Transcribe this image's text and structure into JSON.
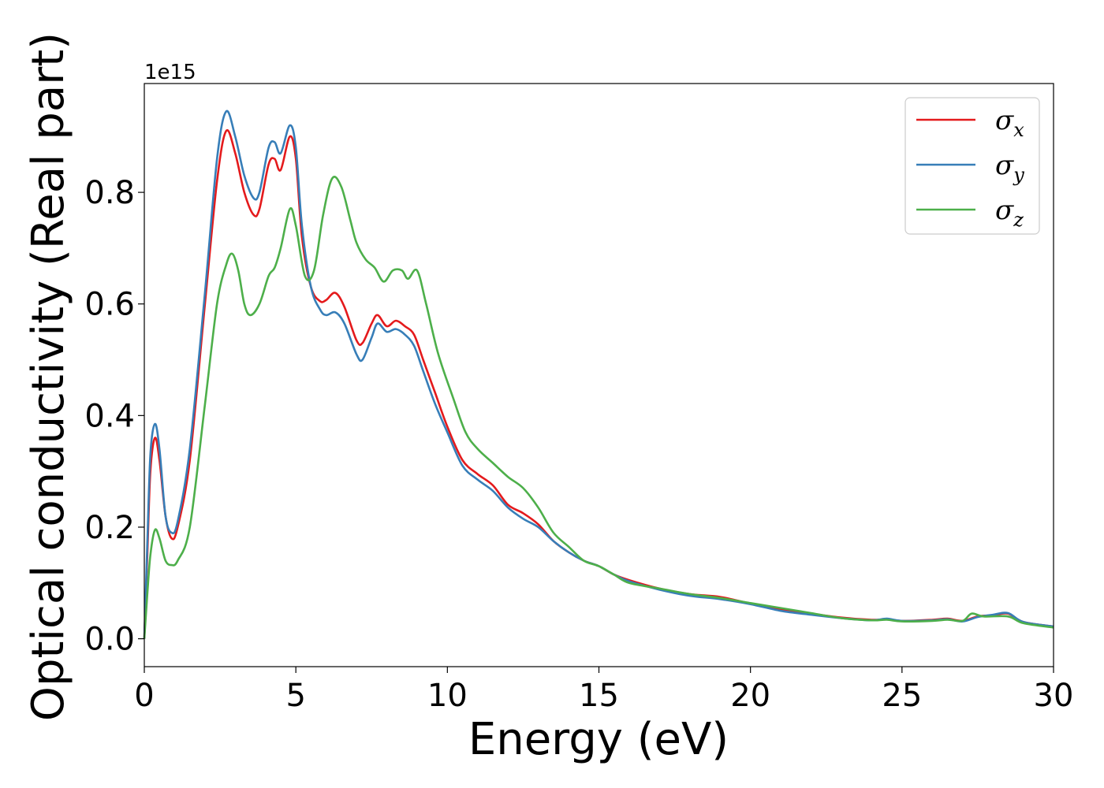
{
  "chart_data": {
    "type": "line",
    "title": "",
    "xlabel": "Energy (eV)",
    "ylabel": "Optical conductivity (Real part)",
    "y_offset_label": "1e15",
    "xlim": [
      0,
      30
    ],
    "ylim": [
      -0.05,
      0.995
    ],
    "xticks": [
      0,
      5,
      10,
      15,
      20,
      25,
      30
    ],
    "xtick_labels": [
      "0",
      "5",
      "10",
      "15",
      "20",
      "25",
      "30"
    ],
    "yticks": [
      0.0,
      0.2,
      0.4,
      0.6,
      0.8
    ],
    "ytick_labels": [
      "0.0",
      "0.2",
      "0.4",
      "0.6",
      "0.8"
    ],
    "grid": false,
    "legend_position": "top-right",
    "series": [
      {
        "name": "σ",
        "subscript": "x",
        "color": "#e41a1c",
        "points": [
          [
            0,
            0.0
          ],
          [
            0.1,
            0.15
          ],
          [
            0.2,
            0.3
          ],
          [
            0.35,
            0.36
          ],
          [
            0.5,
            0.32
          ],
          [
            0.7,
            0.22
          ],
          [
            0.9,
            0.18
          ],
          [
            1.1,
            0.2
          ],
          [
            1.5,
            0.32
          ],
          [
            2.0,
            0.6
          ],
          [
            2.4,
            0.82
          ],
          [
            2.7,
            0.91
          ],
          [
            3.0,
            0.87
          ],
          [
            3.3,
            0.8
          ],
          [
            3.6,
            0.76
          ],
          [
            3.8,
            0.77
          ],
          [
            4.1,
            0.85
          ],
          [
            4.3,
            0.86
          ],
          [
            4.5,
            0.84
          ],
          [
            4.8,
            0.9
          ],
          [
            5.0,
            0.86
          ],
          [
            5.2,
            0.72
          ],
          [
            5.5,
            0.63
          ],
          [
            5.8,
            0.605
          ],
          [
            6.0,
            0.607
          ],
          [
            6.3,
            0.62
          ],
          [
            6.6,
            0.595
          ],
          [
            7.0,
            0.535
          ],
          [
            7.2,
            0.53
          ],
          [
            7.5,
            0.565
          ],
          [
            7.7,
            0.58
          ],
          [
            8.0,
            0.56
          ],
          [
            8.3,
            0.57
          ],
          [
            8.6,
            0.56
          ],
          [
            8.9,
            0.545
          ],
          [
            9.2,
            0.5
          ],
          [
            9.6,
            0.44
          ],
          [
            10.0,
            0.38
          ],
          [
            10.5,
            0.32
          ],
          [
            11.0,
            0.295
          ],
          [
            11.5,
            0.275
          ],
          [
            12.0,
            0.24
          ],
          [
            12.5,
            0.225
          ],
          [
            13.0,
            0.205
          ],
          [
            13.5,
            0.175
          ],
          [
            14.0,
            0.155
          ],
          [
            14.5,
            0.14
          ],
          [
            15.0,
            0.13
          ],
          [
            15.5,
            0.115
          ],
          [
            16.0,
            0.105
          ],
          [
            17.0,
            0.09
          ],
          [
            18.0,
            0.08
          ],
          [
            19.0,
            0.075
          ],
          [
            20.0,
            0.063
          ],
          [
            21.0,
            0.052
          ],
          [
            22.0,
            0.045
          ],
          [
            23.0,
            0.038
          ],
          [
            24.0,
            0.034
          ],
          [
            24.5,
            0.035
          ],
          [
            25.0,
            0.032
          ],
          [
            26.0,
            0.034
          ],
          [
            26.5,
            0.036
          ],
          [
            27.0,
            0.032
          ],
          [
            27.5,
            0.04
          ],
          [
            28.0,
            0.042
          ],
          [
            28.5,
            0.045
          ],
          [
            29.0,
            0.03
          ],
          [
            30.0,
            0.022
          ]
        ]
      },
      {
        "name": "σ",
        "subscript": "y",
        "color": "#377eb8",
        "points": [
          [
            0,
            0.0
          ],
          [
            0.1,
            0.17
          ],
          [
            0.2,
            0.33
          ],
          [
            0.35,
            0.385
          ],
          [
            0.5,
            0.34
          ],
          [
            0.7,
            0.22
          ],
          [
            0.9,
            0.19
          ],
          [
            1.1,
            0.21
          ],
          [
            1.5,
            0.34
          ],
          [
            2.0,
            0.62
          ],
          [
            2.4,
            0.86
          ],
          [
            2.7,
            0.945
          ],
          [
            3.0,
            0.9
          ],
          [
            3.3,
            0.83
          ],
          [
            3.6,
            0.79
          ],
          [
            3.8,
            0.8
          ],
          [
            4.1,
            0.88
          ],
          [
            4.3,
            0.89
          ],
          [
            4.5,
            0.87
          ],
          [
            4.8,
            0.92
          ],
          [
            5.0,
            0.88
          ],
          [
            5.2,
            0.74
          ],
          [
            5.5,
            0.63
          ],
          [
            5.8,
            0.59
          ],
          [
            6.0,
            0.58
          ],
          [
            6.3,
            0.585
          ],
          [
            6.6,
            0.565
          ],
          [
            7.0,
            0.51
          ],
          [
            7.2,
            0.5
          ],
          [
            7.5,
            0.54
          ],
          [
            7.7,
            0.565
          ],
          [
            8.0,
            0.55
          ],
          [
            8.3,
            0.555
          ],
          [
            8.6,
            0.545
          ],
          [
            8.9,
            0.525
          ],
          [
            9.2,
            0.48
          ],
          [
            9.6,
            0.42
          ],
          [
            10.0,
            0.37
          ],
          [
            10.5,
            0.31
          ],
          [
            11.0,
            0.285
          ],
          [
            11.5,
            0.265
          ],
          [
            12.0,
            0.235
          ],
          [
            12.5,
            0.215
          ],
          [
            13.0,
            0.2
          ],
          [
            13.5,
            0.175
          ],
          [
            14.0,
            0.155
          ],
          [
            14.5,
            0.14
          ],
          [
            15.0,
            0.13
          ],
          [
            15.5,
            0.115
          ],
          [
            16.0,
            0.103
          ],
          [
            17.0,
            0.088
          ],
          [
            18.0,
            0.077
          ],
          [
            19.0,
            0.071
          ],
          [
            20.0,
            0.062
          ],
          [
            21.0,
            0.05
          ],
          [
            22.0,
            0.043
          ],
          [
            23.0,
            0.037
          ],
          [
            24.0,
            0.033
          ],
          [
            24.5,
            0.036
          ],
          [
            25.0,
            0.032
          ],
          [
            26.0,
            0.033
          ],
          [
            26.5,
            0.035
          ],
          [
            27.0,
            0.031
          ],
          [
            27.5,
            0.039
          ],
          [
            28.0,
            0.043
          ],
          [
            28.5,
            0.046
          ],
          [
            29.0,
            0.03
          ],
          [
            30.0,
            0.022
          ]
        ]
      },
      {
        "name": "σ",
        "subscript": "z",
        "color": "#4daf4a",
        "points": [
          [
            0,
            0.0
          ],
          [
            0.1,
            0.08
          ],
          [
            0.2,
            0.15
          ],
          [
            0.35,
            0.195
          ],
          [
            0.5,
            0.18
          ],
          [
            0.7,
            0.14
          ],
          [
            0.9,
            0.132
          ],
          [
            1.1,
            0.14
          ],
          [
            1.5,
            0.2
          ],
          [
            2.0,
            0.42
          ],
          [
            2.4,
            0.6
          ],
          [
            2.7,
            0.67
          ],
          [
            2.9,
            0.69
          ],
          [
            3.1,
            0.66
          ],
          [
            3.3,
            0.6
          ],
          [
            3.5,
            0.58
          ],
          [
            3.8,
            0.6
          ],
          [
            4.1,
            0.65
          ],
          [
            4.3,
            0.665
          ],
          [
            4.5,
            0.7
          ],
          [
            4.8,
            0.77
          ],
          [
            5.0,
            0.74
          ],
          [
            5.3,
            0.65
          ],
          [
            5.6,
            0.66
          ],
          [
            5.9,
            0.76
          ],
          [
            6.2,
            0.825
          ],
          [
            6.5,
            0.81
          ],
          [
            6.8,
            0.75
          ],
          [
            7.0,
            0.71
          ],
          [
            7.3,
            0.68
          ],
          [
            7.6,
            0.665
          ],
          [
            7.9,
            0.64
          ],
          [
            8.2,
            0.66
          ],
          [
            8.5,
            0.66
          ],
          [
            8.7,
            0.645
          ],
          [
            9.0,
            0.66
          ],
          [
            9.3,
            0.6
          ],
          [
            9.7,
            0.51
          ],
          [
            10.2,
            0.43
          ],
          [
            10.6,
            0.37
          ],
          [
            11.0,
            0.34
          ],
          [
            11.5,
            0.315
          ],
          [
            12.0,
            0.29
          ],
          [
            12.5,
            0.27
          ],
          [
            13.0,
            0.235
          ],
          [
            13.5,
            0.19
          ],
          [
            14.0,
            0.165
          ],
          [
            14.5,
            0.14
          ],
          [
            15.0,
            0.13
          ],
          [
            15.5,
            0.115
          ],
          [
            16.0,
            0.1
          ],
          [
            17.0,
            0.09
          ],
          [
            18.0,
            0.08
          ],
          [
            19.0,
            0.073
          ],
          [
            20.0,
            0.064
          ],
          [
            21.0,
            0.055
          ],
          [
            22.0,
            0.046
          ],
          [
            23.0,
            0.037
          ],
          [
            24.0,
            0.033
          ],
          [
            24.5,
            0.034
          ],
          [
            25.0,
            0.031
          ],
          [
            26.0,
            0.032
          ],
          [
            26.5,
            0.034
          ],
          [
            27.0,
            0.032
          ],
          [
            27.3,
            0.045
          ],
          [
            27.7,
            0.04
          ],
          [
            28.5,
            0.04
          ],
          [
            29.0,
            0.028
          ],
          [
            30.0,
            0.02
          ]
        ]
      }
    ]
  }
}
